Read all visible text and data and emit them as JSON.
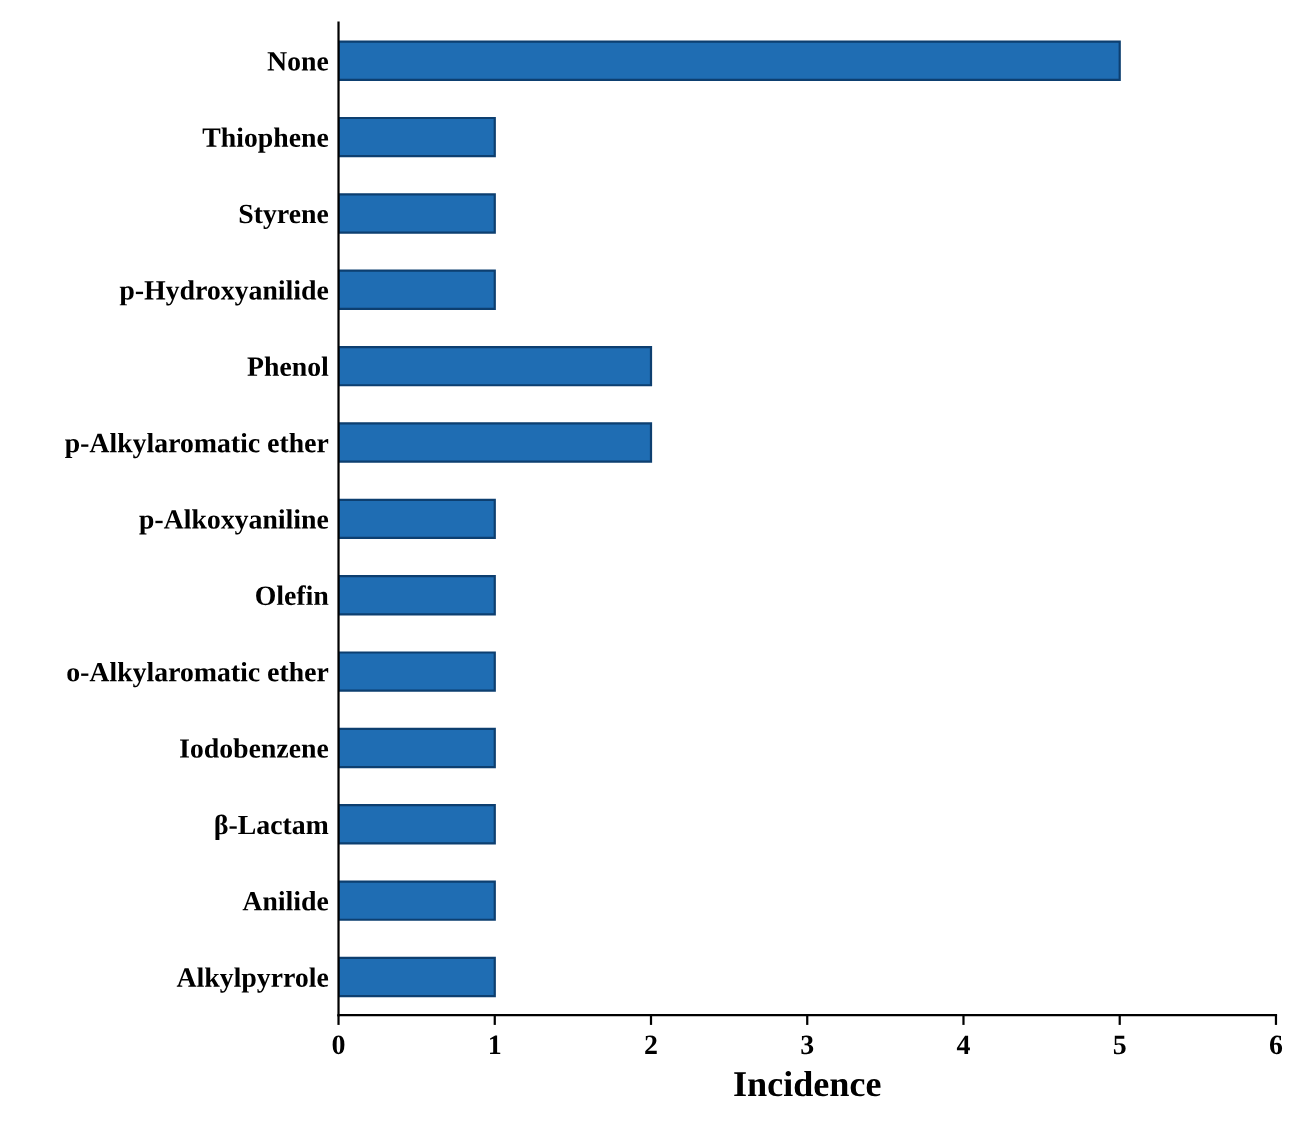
{
  "chart_data": {
    "type": "bar",
    "orientation": "horizontal",
    "xlabel": "Incidence",
    "categories": [
      "None",
      "Thiophene",
      "Styrene",
      "p-Hydroxyanilide",
      "Phenol",
      "p-Alkylaromatic ether",
      "p-Alkoxyaniline",
      "Olefin",
      "o-Alkylaromatic ether",
      "Iodobenzene",
      "β-Lactam",
      "Anilide",
      "Alkylpyrrole"
    ],
    "values": [
      5,
      1,
      1,
      1,
      2,
      2,
      1,
      1,
      1,
      1,
      1,
      1,
      1
    ],
    "color": "#1f6db3",
    "xlim": [
      0,
      6
    ],
    "xticks": [
      0,
      1,
      2,
      3,
      4,
      5,
      6
    ],
    "grid": false,
    "legend": false
  }
}
